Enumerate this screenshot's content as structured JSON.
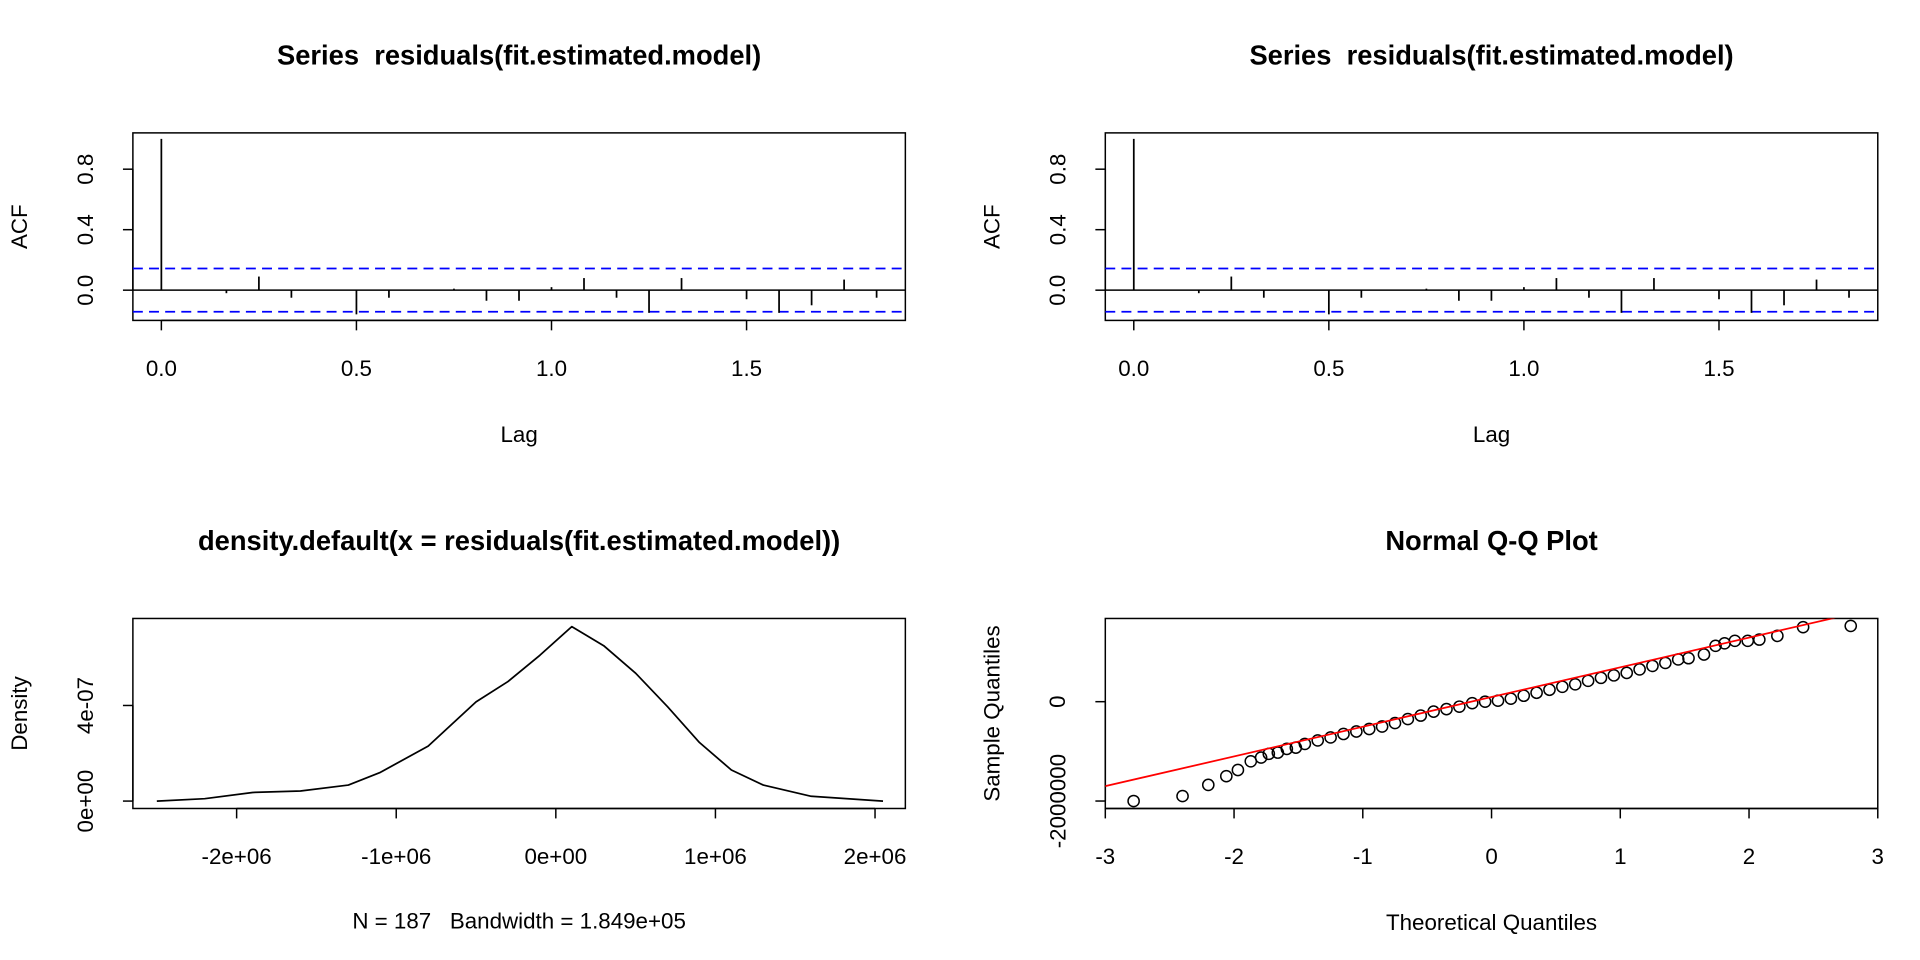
{
  "chart_data": [
    {
      "type": "acf",
      "title": "Series  residuals(fit.estimated.model)",
      "xlabel": "Lag",
      "ylabel": "ACF",
      "x": [
        0,
        0.0833,
        0.1667,
        0.25,
        0.3333,
        0.4167,
        0.5,
        0.5833,
        0.6667,
        0.75,
        0.8333,
        0.9167,
        1,
        1.0833,
        1.1667,
        1.25,
        1.3333,
        1.4167,
        1.5,
        1.5833,
        1.6667,
        1.75,
        1.8333
      ],
      "values": [
        1,
        0.003,
        -0.02,
        0.09,
        -0.05,
        0.002,
        -0.16,
        -0.05,
        0.003,
        0.01,
        -0.07,
        -0.07,
        0.02,
        0.08,
        -0.05,
        -0.15,
        0.08,
        0.003,
        -0.06,
        -0.15,
        -0.1,
        0.07,
        -0.05
      ],
      "ci": 0.143,
      "color": "#000000",
      "ci_color": "#0000ff",
      "xlim": [
        -0.073,
        1.907
      ],
      "ylim": [
        -0.2,
        1.04
      ],
      "xticks": [
        {
          "value": 0,
          "label": "0.0"
        },
        0.5,
        {
          "value": 1,
          "label": "1.0"
        },
        1.5
      ],
      "yticks": [
        {
          "value": 0,
          "label": "0.0"
        },
        0.4,
        0.8
      ]
    },
    {
      "type": "acf",
      "title": "Series  residuals(fit.estimated.model)",
      "xlabel": "Lag",
      "ylabel": "ACF",
      "x": [
        0,
        0.0833,
        0.1667,
        0.25,
        0.3333,
        0.4167,
        0.5,
        0.5833,
        0.6667,
        0.75,
        0.8333,
        0.9167,
        1,
        1.0833,
        1.1667,
        1.25,
        1.3333,
        1.4167,
        1.5,
        1.5833,
        1.6667,
        1.75,
        1.8333
      ],
      "values": [
        1,
        0.003,
        -0.02,
        0.09,
        -0.05,
        0.002,
        -0.16,
        -0.05,
        0.003,
        0.01,
        -0.07,
        -0.07,
        0.02,
        0.08,
        -0.05,
        -0.15,
        0.08,
        0.003,
        -0.06,
        -0.15,
        -0.1,
        0.07,
        -0.05
      ],
      "ci": 0.143,
      "color": "#000000",
      "ci_color": "#0000ff",
      "xlim": [
        -0.073,
        1.907
      ],
      "ylim": [
        -0.2,
        1.04
      ],
      "xticks": [
        {
          "value": 0,
          "label": "0.0"
        },
        0.5,
        {
          "value": 1,
          "label": "1.0"
        },
        1.5
      ],
      "yticks": [
        {
          "value": 0,
          "label": "0.0"
        },
        0.4,
        0.8
      ]
    },
    {
      "type": "density",
      "title": "density.default(x = residuals(fit.estimated.model))",
      "subtitle": "N = 187   Bandwidth = 1.849e+05",
      "ylabel": "Density",
      "x": [
        -2500000,
        -2200000,
        -1900000,
        -1600000,
        -1300000,
        -1100000,
        -800000,
        -500000,
        -300000,
        -100000,
        100000,
        300000,
        500000,
        700000,
        900000,
        1100000,
        1300000,
        1600000,
        2050000
      ],
      "values": [
        0,
        1e-08,
        3.6e-08,
        4.2e-08,
        6.7e-08,
        1.2e-07,
        2.3e-07,
        4.15e-07,
        5e-07,
        6.1e-07,
        7.3e-07,
        6.5e-07,
        5.35e-07,
        3.95e-07,
        2.45e-07,
        1.3e-07,
        6.7e-08,
        2e-08,
        0
      ],
      "color": "#000000",
      "xlim": [
        -2650000,
        2190000
      ],
      "ylim": [
        -3.1e-08,
        7.64e-07
      ],
      "xticks": [
        {
          "value": -2000000,
          "label": "-2e+06"
        },
        {
          "value": -1000000,
          "label": "-1e+06"
        },
        {
          "value": 0,
          "label": "0e+00"
        },
        {
          "value": 1000000,
          "label": "1e+06"
        },
        {
          "value": 2000000,
          "label": "2e+06"
        }
      ],
      "yticks": [
        {
          "value": 0,
          "label": "0e+00"
        },
        {
          "value": 4e-07,
          "label": "4e-07"
        }
      ]
    },
    {
      "type": "qq",
      "title": "Normal Q-Q Plot",
      "xlabel": "Theoretical Quantiles",
      "ylabel": "Sample Quantiles",
      "x": [
        -2.78,
        -2.4,
        -2.2,
        -2.06,
        -1.97,
        -1.87,
        -1.79,
        -1.73,
        -1.66,
        -1.59,
        -1.52,
        -1.45,
        -1.35,
        -1.25,
        -1.15,
        -1.05,
        -0.95,
        -0.85,
        -0.75,
        -0.65,
        -0.55,
        -0.45,
        -0.35,
        -0.25,
        -0.15,
        -0.05,
        0.05,
        0.15,
        0.25,
        0.35,
        0.45,
        0.55,
        0.65,
        0.75,
        0.85,
        0.95,
        1.05,
        1.15,
        1.25,
        1.35,
        1.45,
        1.53,
        1.65,
        1.74,
        1.81,
        1.89,
        1.99,
        2.08,
        2.22,
        2.42,
        2.79
      ],
      "values": [
        -2000000,
        -1900000,
        -1675000,
        -1500000,
        -1375000,
        -1200000,
        -1125000,
        -1050000,
        -1025000,
        -950000,
        -925000,
        -850000,
        -780000,
        -720000,
        -650000,
        -600000,
        -550000,
        -500000,
        -430000,
        -350000,
        -280000,
        -200000,
        -150000,
        -100000,
        -30000,
        0,
        20000,
        60000,
        120000,
        180000,
        240000,
        300000,
        350000,
        420000,
        480000,
        530000,
        580000,
        650000,
        720000,
        780000,
        850000,
        875000,
        950000,
        1125000,
        1175000,
        1225000,
        1225000,
        1250000,
        1325000,
        1500000,
        1525000
      ],
      "line": {
        "intercept": 94000,
        "slope": 598000
      },
      "color": "#000000",
      "line_color": "#ff0000",
      "xlim": [
        -3,
        3
      ],
      "ylim": [
        -2150000,
        1675000
      ],
      "xticks": [
        -3,
        -2,
        -1,
        0,
        1,
        2,
        3
      ],
      "yticks": [
        -2000000,
        0
      ]
    }
  ]
}
